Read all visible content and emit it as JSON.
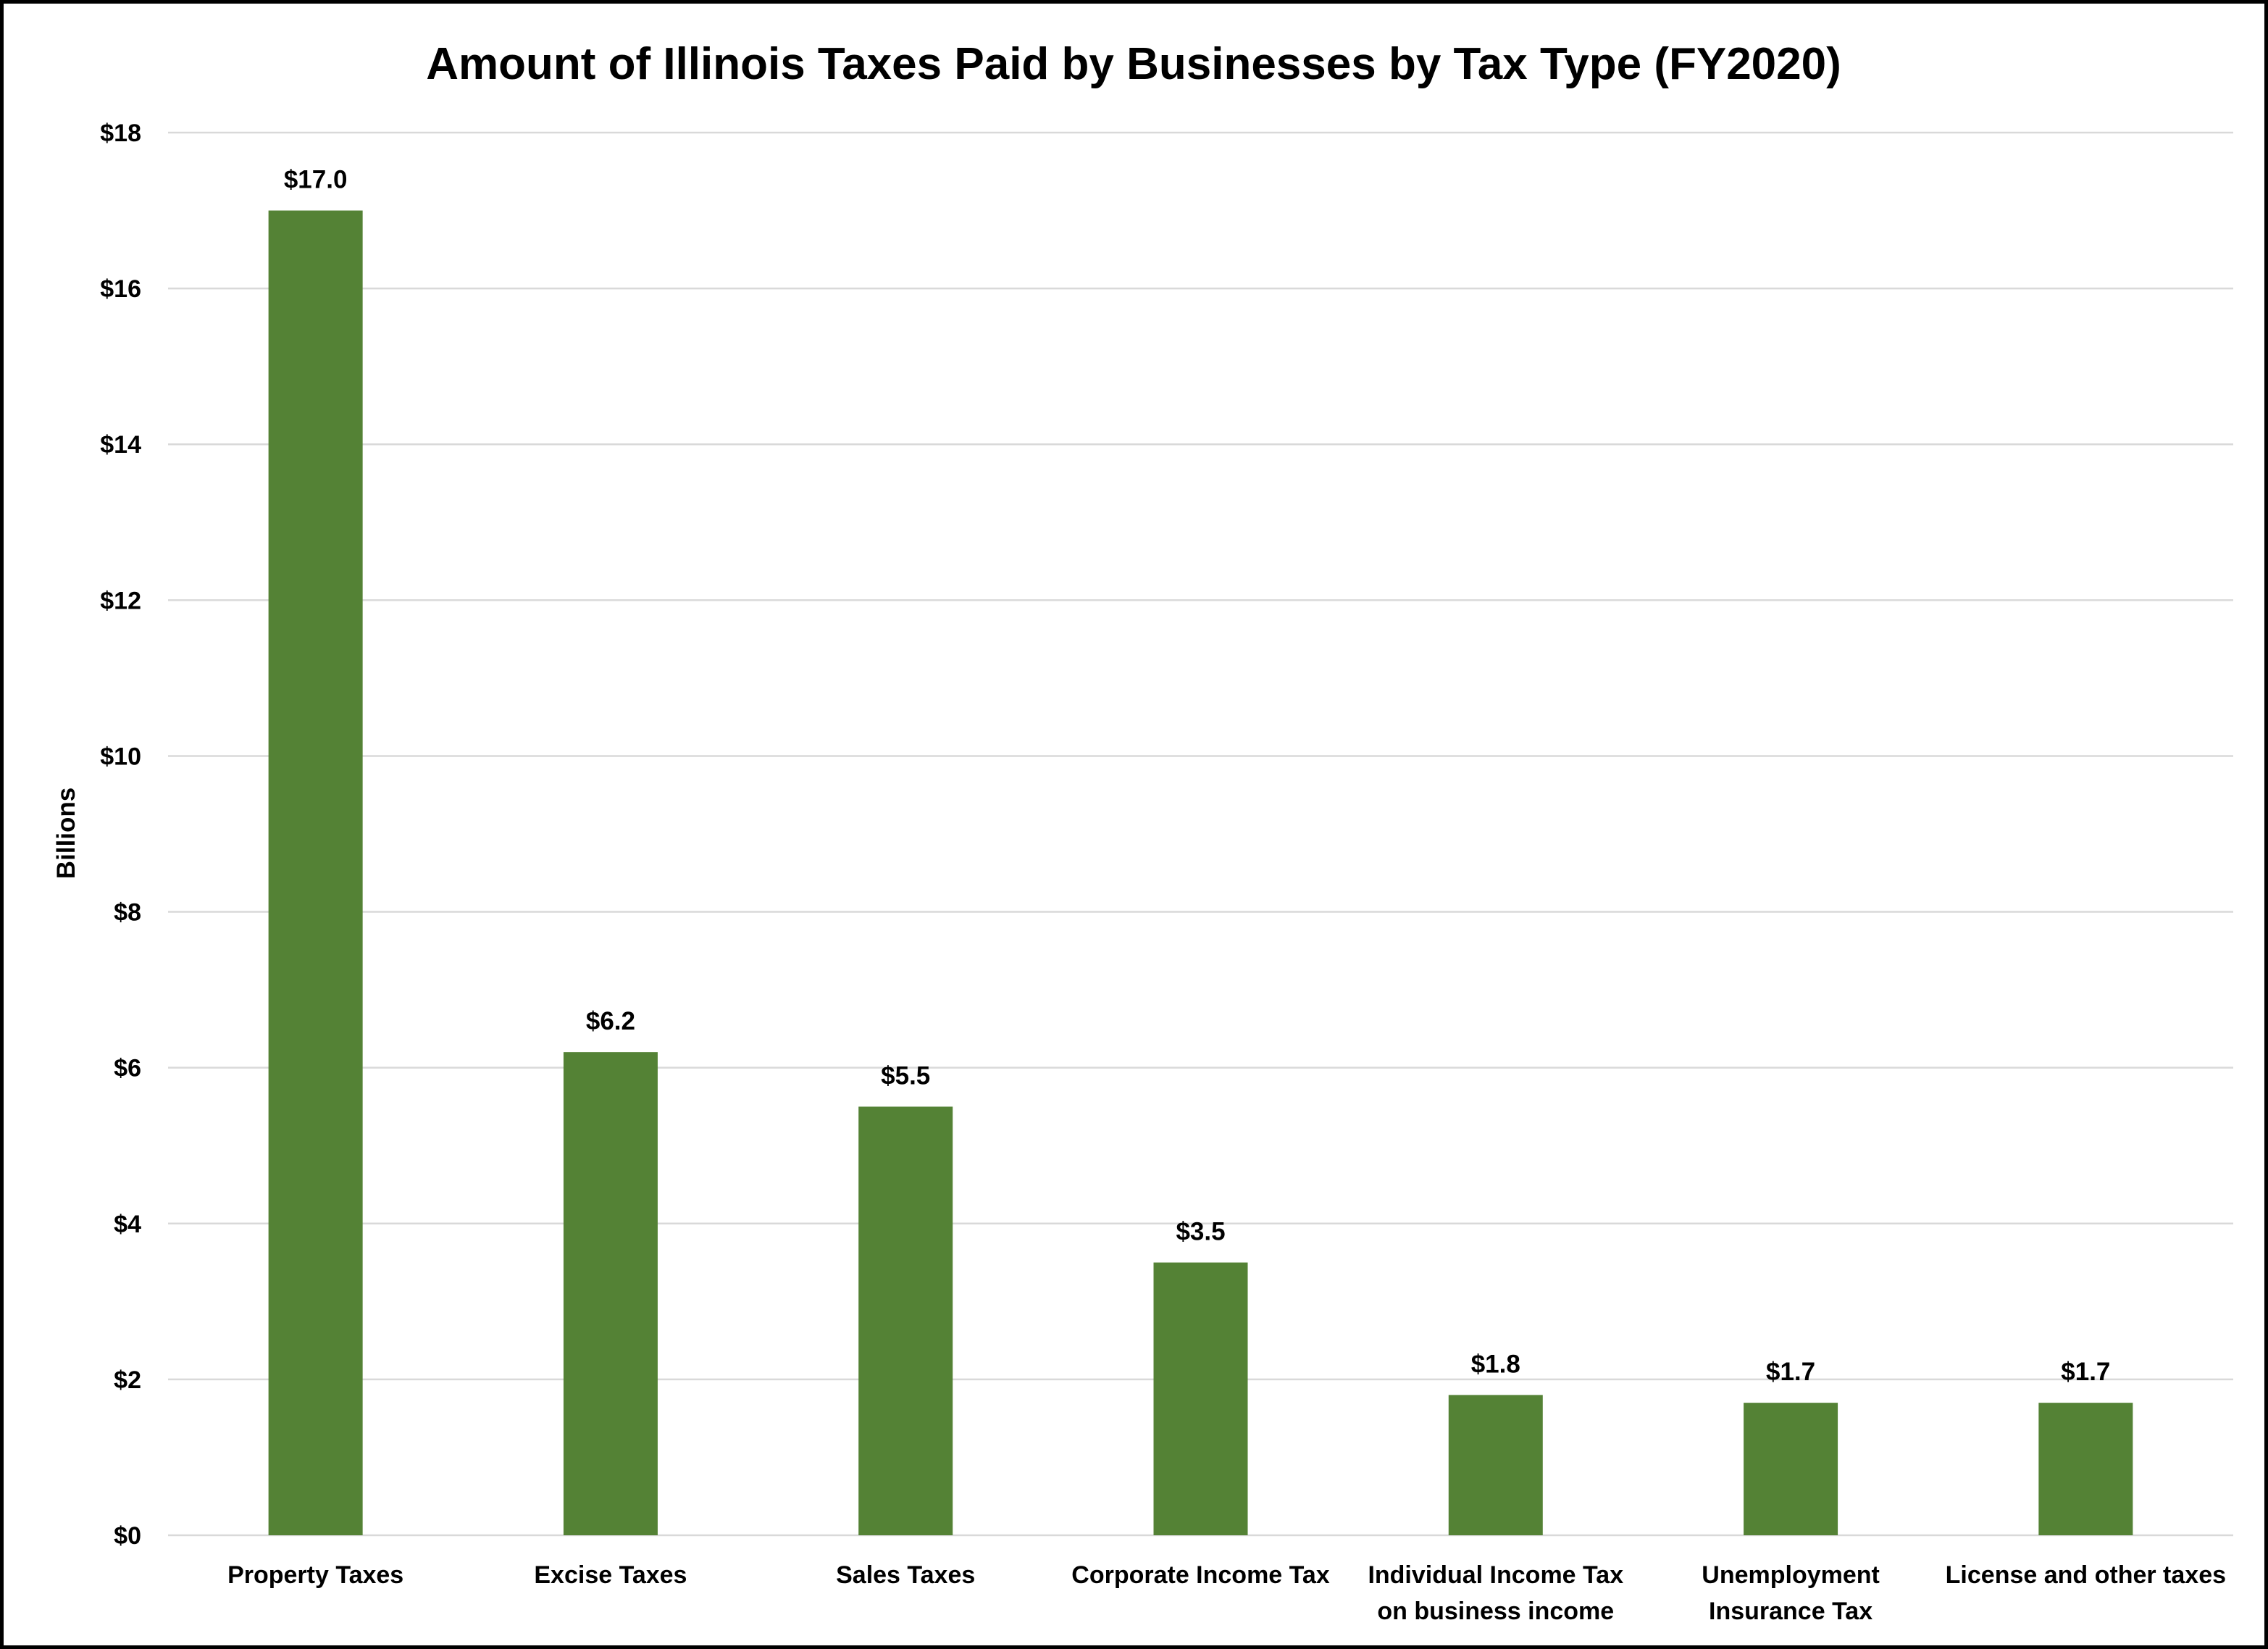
{
  "chart_data": {
    "type": "bar",
    "title": "Amount of Illinois Taxes Paid by Businesses by Tax Type (FY2020)",
    "xlabel": "",
    "ylabel": "Billions",
    "ylim": [
      0,
      18
    ],
    "y_ticks": [
      0,
      2,
      4,
      6,
      8,
      10,
      12,
      14,
      16,
      18
    ],
    "y_tick_labels": [
      "$0",
      "$2",
      "$4",
      "$6",
      "$8",
      "$10",
      "$12",
      "$14",
      "$16",
      "$18"
    ],
    "grid": true,
    "legend": "none",
    "bar_color": "#548235",
    "categories": [
      [
        "Property Taxes"
      ],
      [
        "Excise Taxes"
      ],
      [
        "Sales Taxes"
      ],
      [
        "Corporate Income Tax"
      ],
      [
        "Individual Income Tax",
        "on business income"
      ],
      [
        "Unemployment",
        "Insurance Tax"
      ],
      [
        "License and other taxes"
      ]
    ],
    "values": [
      17.0,
      6.2,
      5.5,
      3.5,
      1.8,
      1.7,
      1.7
    ],
    "data_labels": [
      "$17.0",
      "$6.2",
      "$5.5",
      "$3.5",
      "$1.8",
      "$1.7",
      "$1.7"
    ]
  }
}
